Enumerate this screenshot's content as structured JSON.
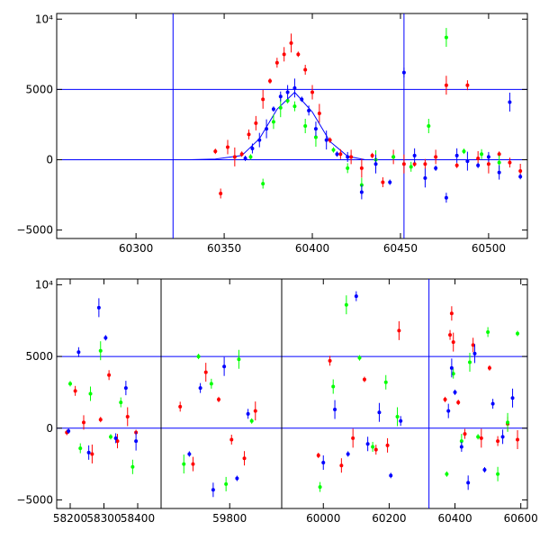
{
  "colors": {
    "red": "#ff0000",
    "green": "#00ff00",
    "blue": "#0000ff",
    "axis": "#000000"
  },
  "chart_data": [
    {
      "type": "scatter",
      "title": "",
      "xlabel": "",
      "ylabel": "",
      "xlim": [
        60255,
        60522
      ],
      "ylim": [
        -5600,
        10400
      ],
      "x_ticks": [
        60300,
        60350,
        60400,
        60450,
        60500
      ],
      "x_tick_labels": [
        "60300",
        "60350",
        "60400",
        "60450",
        "60500"
      ],
      "y_ticks": [
        -5000,
        0,
        5000,
        10000
      ],
      "y_tick_labels": [
        "−5000",
        "0",
        "5000",
        "10⁴"
      ],
      "hlines": [
        0,
        5000
      ],
      "vlines": [
        60321,
        60452
      ],
      "model_curve": {
        "color": "blue",
        "x": [
          60330,
          60345,
          60360,
          60370,
          60380,
          60390,
          60400,
          60410,
          60420,
          60430
        ],
        "y": [
          0,
          50,
          300,
          1500,
          3600,
          4800,
          3400,
          1300,
          250,
          0
        ]
      },
      "series": [
        {
          "color": "red",
          "x": [
            60345,
            60348,
            60352,
            60356,
            60360,
            60364,
            60368,
            60372,
            60376,
            60380,
            60384,
            60388,
            60392,
            60396,
            60400,
            60404,
            60410,
            60416,
            60422,
            60428,
            60434,
            60440,
            60446,
            60452,
            60458,
            60464,
            60470,
            60476,
            60482,
            60488,
            60494,
            60500,
            60506,
            60512,
            60518
          ],
          "y": [
            600,
            -2400,
            900,
            200,
            400,
            1800,
            2600,
            4300,
            5600,
            6900,
            7500,
            8300,
            7500,
            6400,
            4800,
            3300,
            1400,
            400,
            200,
            -600,
            300,
            -1600,
            200,
            -300,
            -300,
            -300,
            200,
            5300,
            -400,
            5300,
            100,
            -300,
            400,
            -200,
            -800
          ]
        },
        {
          "color": "green",
          "x": [
            60365,
            60372,
            60378,
            60382,
            60386,
            60390,
            60396,
            60402,
            60412,
            60420,
            60428,
            60436,
            60446,
            60456,
            60466,
            60476,
            60486,
            60496,
            60506
          ],
          "y": [
            200,
            -1700,
            2700,
            3700,
            4200,
            3800,
            2400,
            1600,
            700,
            -600,
            -1800,
            0,
            200,
            -500,
            2400,
            8700,
            600,
            400,
            -200
          ]
        },
        {
          "color": "blue",
          "x": [
            60362,
            60366,
            60370,
            60374,
            60378,
            60382,
            60386,
            60390,
            60394,
            60398,
            60402,
            60408,
            60414,
            60420,
            60428,
            60436,
            60444,
            60452,
            60458,
            60464,
            60470,
            60476,
            60482,
            60488,
            60494,
            60500,
            60506,
            60512,
            60518
          ],
          "y": [
            100,
            800,
            1400,
            2200,
            3600,
            4500,
            4800,
            5100,
            4300,
            3500,
            2200,
            1400,
            400,
            200,
            -2300,
            -300,
            -1600,
            6200,
            300,
            -1300,
            -600,
            -2700,
            300,
            -100,
            -400,
            200,
            -900,
            4100,
            -1200
          ]
        }
      ]
    },
    {
      "type": "scatter",
      "title": "",
      "xlabel": "",
      "ylabel": "",
      "x_segments": [
        {
          "xlim": [
            58160,
            58440
          ]
        },
        {
          "xlim": [
            59640,
            59900
          ]
        },
        {
          "xlim": [
            59920,
            60620
          ]
        }
      ],
      "x_ticks": [
        58200,
        58300,
        58400,
        59800,
        60000,
        60200,
        60400,
        60600
      ],
      "x_tick_labels": [
        "58200",
        "58300",
        "58400",
        "59800",
        "60000",
        "60200",
        "60400",
        "60600"
      ],
      "ylim": [
        -5600,
        10400
      ],
      "y_ticks": [
        -5000,
        0,
        5000,
        10000
      ],
      "y_tick_labels": [
        "−5000",
        "0",
        "5000",
        "10⁴"
      ],
      "hlines": [
        0,
        5000
      ],
      "vlines": [
        60321
      ],
      "series": [
        {
          "color": "red",
          "x": [
            58190,
            58215,
            58240,
            58265,
            58290,
            58315,
            58340,
            58370,
            58395,
            59665,
            59700,
            59735,
            59770,
            59805,
            59840,
            59870,
            59985,
            60020,
            60055,
            60090,
            60125,
            60160,
            60195,
            60230,
            60370,
            60385,
            60390,
            60395,
            60410,
            60430,
            60455,
            60480,
            60505,
            60530,
            60560,
            60590
          ],
          "y": [
            -300,
            2600,
            400,
            -1800,
            600,
            3700,
            -900,
            800,
            -300,
            1500,
            -2500,
            3900,
            2000,
            -800,
            -2100,
            1200,
            -1900,
            4700,
            -2600,
            -700,
            3400,
            -1500,
            -1200,
            6800,
            2000,
            6500,
            8000,
            6000,
            1800,
            -400,
            5800,
            -700,
            4200,
            -900,
            300,
            -800
          ]
        },
        {
          "color": "green",
          "x": [
            58200,
            58230,
            58260,
            58290,
            58320,
            58350,
            58385,
            59675,
            59715,
            59750,
            59790,
            59825,
            59860,
            59990,
            60030,
            60070,
            60110,
            60150,
            60190,
            60225,
            60375,
            60395,
            60420,
            60445,
            60470,
            60500,
            60530,
            60560,
            60590
          ],
          "y": [
            3100,
            -1400,
            2400,
            5400,
            -600,
            1800,
            -2700,
            -2500,
            5000,
            3100,
            -3900,
            4800,
            500,
            -4100,
            2900,
            8600,
            4900,
            -1300,
            3200,
            800,
            -3200,
            3800,
            -900,
            4600,
            -600,
            6700,
            -3200,
            400,
            6600
          ]
        },
        {
          "color": "blue",
          "x": [
            58195,
            58225,
            58255,
            58285,
            58305,
            58335,
            58365,
            58395,
            59690,
            59720,
            59755,
            59785,
            59820,
            59850,
            60000,
            60035,
            60075,
            60100,
            60135,
            60170,
            60205,
            60235,
            60380,
            60390,
            60400,
            60420,
            60440,
            60460,
            60490,
            60515,
            60545,
            60575
          ],
          "y": [
            -200,
            5300,
            -1700,
            8400,
            6300,
            -700,
            2800,
            -900,
            -1800,
            2800,
            -4300,
            4300,
            -3500,
            1000,
            -2400,
            1300,
            -1800,
            9200,
            -1100,
            1100,
            -3300,
            500,
            1200,
            4200,
            2500,
            -1300,
            -3800,
            5200,
            -2900,
            1700,
            -600,
            2100
          ]
        }
      ]
    }
  ]
}
